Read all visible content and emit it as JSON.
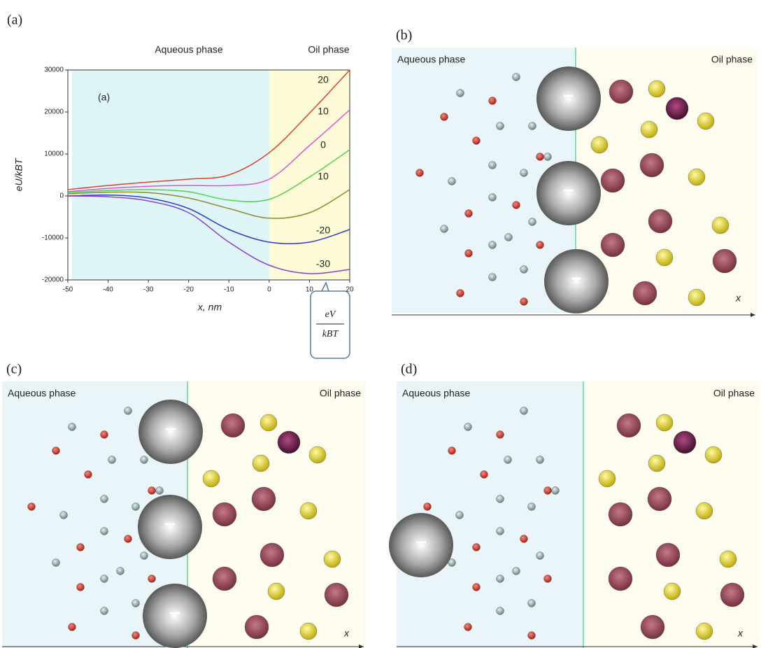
{
  "chart_data": {
    "type": "line",
    "panel_label": "(a)",
    "inner_label": "(a)",
    "region_labels": [
      "Aqueous phase",
      "Oil phase"
    ],
    "interface_x": 0,
    "xlabel": "x, nm",
    "ylabel": "eU/kBT",
    "callout": {
      "numerator": "eV",
      "denominator": "kBT"
    },
    "x": [
      -50,
      -40,
      -30,
      -20,
      -10,
      0,
      10,
      20
    ],
    "series": [
      {
        "name": "20",
        "color": "#d9442b",
        "values": [
          1500,
          2500,
          3300,
          4000,
          5000,
          10300,
          19700,
          30000
        ]
      },
      {
        "name": "10",
        "color": "#e055d6",
        "values": [
          1000,
          1800,
          2300,
          2500,
          2500,
          4000,
          12000,
          20500
        ]
      },
      {
        "name": "0",
        "color": "#4fd14a",
        "values": [
          800,
          1300,
          1500,
          1000,
          -1000,
          -800,
          4500,
          11000
        ]
      },
      {
        "name": "10",
        "color": "#8c8c2a",
        "values": [
          500,
          900,
          800,
          -500,
          -3000,
          -5300,
          -4000,
          1500
        ]
      },
      {
        "name": "-20",
        "color": "#2a3fd0",
        "values": [
          0,
          200,
          -500,
          -3000,
          -8000,
          -11000,
          -11000,
          -8000
        ]
      },
      {
        "name": "-30",
        "color": "#8a3fd0",
        "values": [
          0,
          -200,
          -1200,
          -4000,
          -11000,
          -16500,
          -18500,
          -17500
        ]
      }
    ],
    "xlim": [
      -50,
      20
    ],
    "ylim": [
      -20000,
      30000
    ],
    "xticks": [
      -50,
      -40,
      -30,
      -20,
      -10,
      0,
      10,
      20
    ],
    "yticks": [
      -20000,
      -10000,
      0,
      10000,
      20000,
      30000
    ]
  },
  "diagrams": [
    {
      "label": "(b)",
      "aqueous": "Aqueous phase",
      "oil": "Oil phase",
      "axis": "x"
    },
    {
      "label": "(c)",
      "aqueous": "Aqueous phase",
      "oil": "Oil phase",
      "axis": "x"
    },
    {
      "label": "(d)",
      "aqueous": "Aqueous phase",
      "oil": "Oil phase",
      "axis": "x"
    }
  ]
}
